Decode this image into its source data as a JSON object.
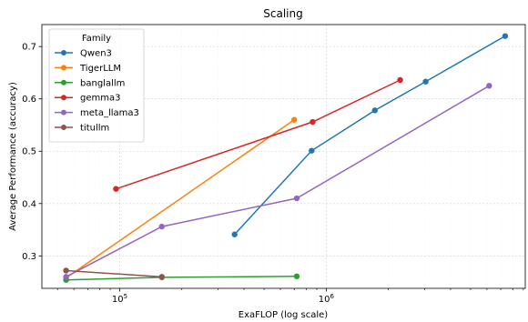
{
  "chart_data": {
    "type": "line",
    "title": "Scaling",
    "xlabel": "ExaFLOP (log scale)",
    "ylabel": "Average Performance (accuracy)",
    "x_scale": "log",
    "xlim": [
      42000,
      9200000
    ],
    "ylim": [
      0.238,
      0.742
    ],
    "x_ticks": [
      {
        "value": 100000,
        "base": "10",
        "exp": "5"
      },
      {
        "value": 1000000,
        "base": "10",
        "exp": "6"
      }
    ],
    "y_ticks": [
      0.3,
      0.4,
      0.5,
      0.6,
      0.7
    ],
    "y_tick_labels": [
      "0.3",
      "0.4",
      "0.5",
      "0.6",
      "0.7"
    ],
    "grid": true,
    "legend": {
      "title": "Family",
      "placement": "top-left"
    },
    "series": [
      {
        "name": "Qwen3",
        "color": "#1f77b4",
        "points": [
          [
            360000,
            0.341
          ],
          [
            850000,
            0.501
          ],
          [
            1720000,
            0.578
          ],
          [
            3030000,
            0.633
          ],
          [
            7350000,
            0.72
          ]
        ]
      },
      {
        "name": "TigerLLM",
        "color": "#ff7f0e",
        "points": [
          [
            55000,
            0.258
          ],
          [
            700000,
            0.56
          ]
        ]
      },
      {
        "name": "banglallm",
        "color": "#2ca02c",
        "points": [
          [
            55000,
            0.254
          ],
          [
            160000,
            0.259
          ],
          [
            720000,
            0.261
          ]
        ]
      },
      {
        "name": "gemma3",
        "color": "#d62728",
        "points": [
          [
            96000,
            0.428
          ],
          [
            860000,
            0.556
          ],
          [
            2280000,
            0.636
          ]
        ]
      },
      {
        "name": "meta_llama3",
        "color": "#9467bd",
        "points": [
          [
            55000,
            0.26
          ],
          [
            160000,
            0.356
          ],
          [
            720000,
            0.41
          ],
          [
            6150000,
            0.625
          ]
        ]
      },
      {
        "name": "titullm",
        "color": "#8c564b",
        "points": [
          [
            55000,
            0.272
          ],
          [
            160000,
            0.26
          ]
        ]
      }
    ]
  }
}
